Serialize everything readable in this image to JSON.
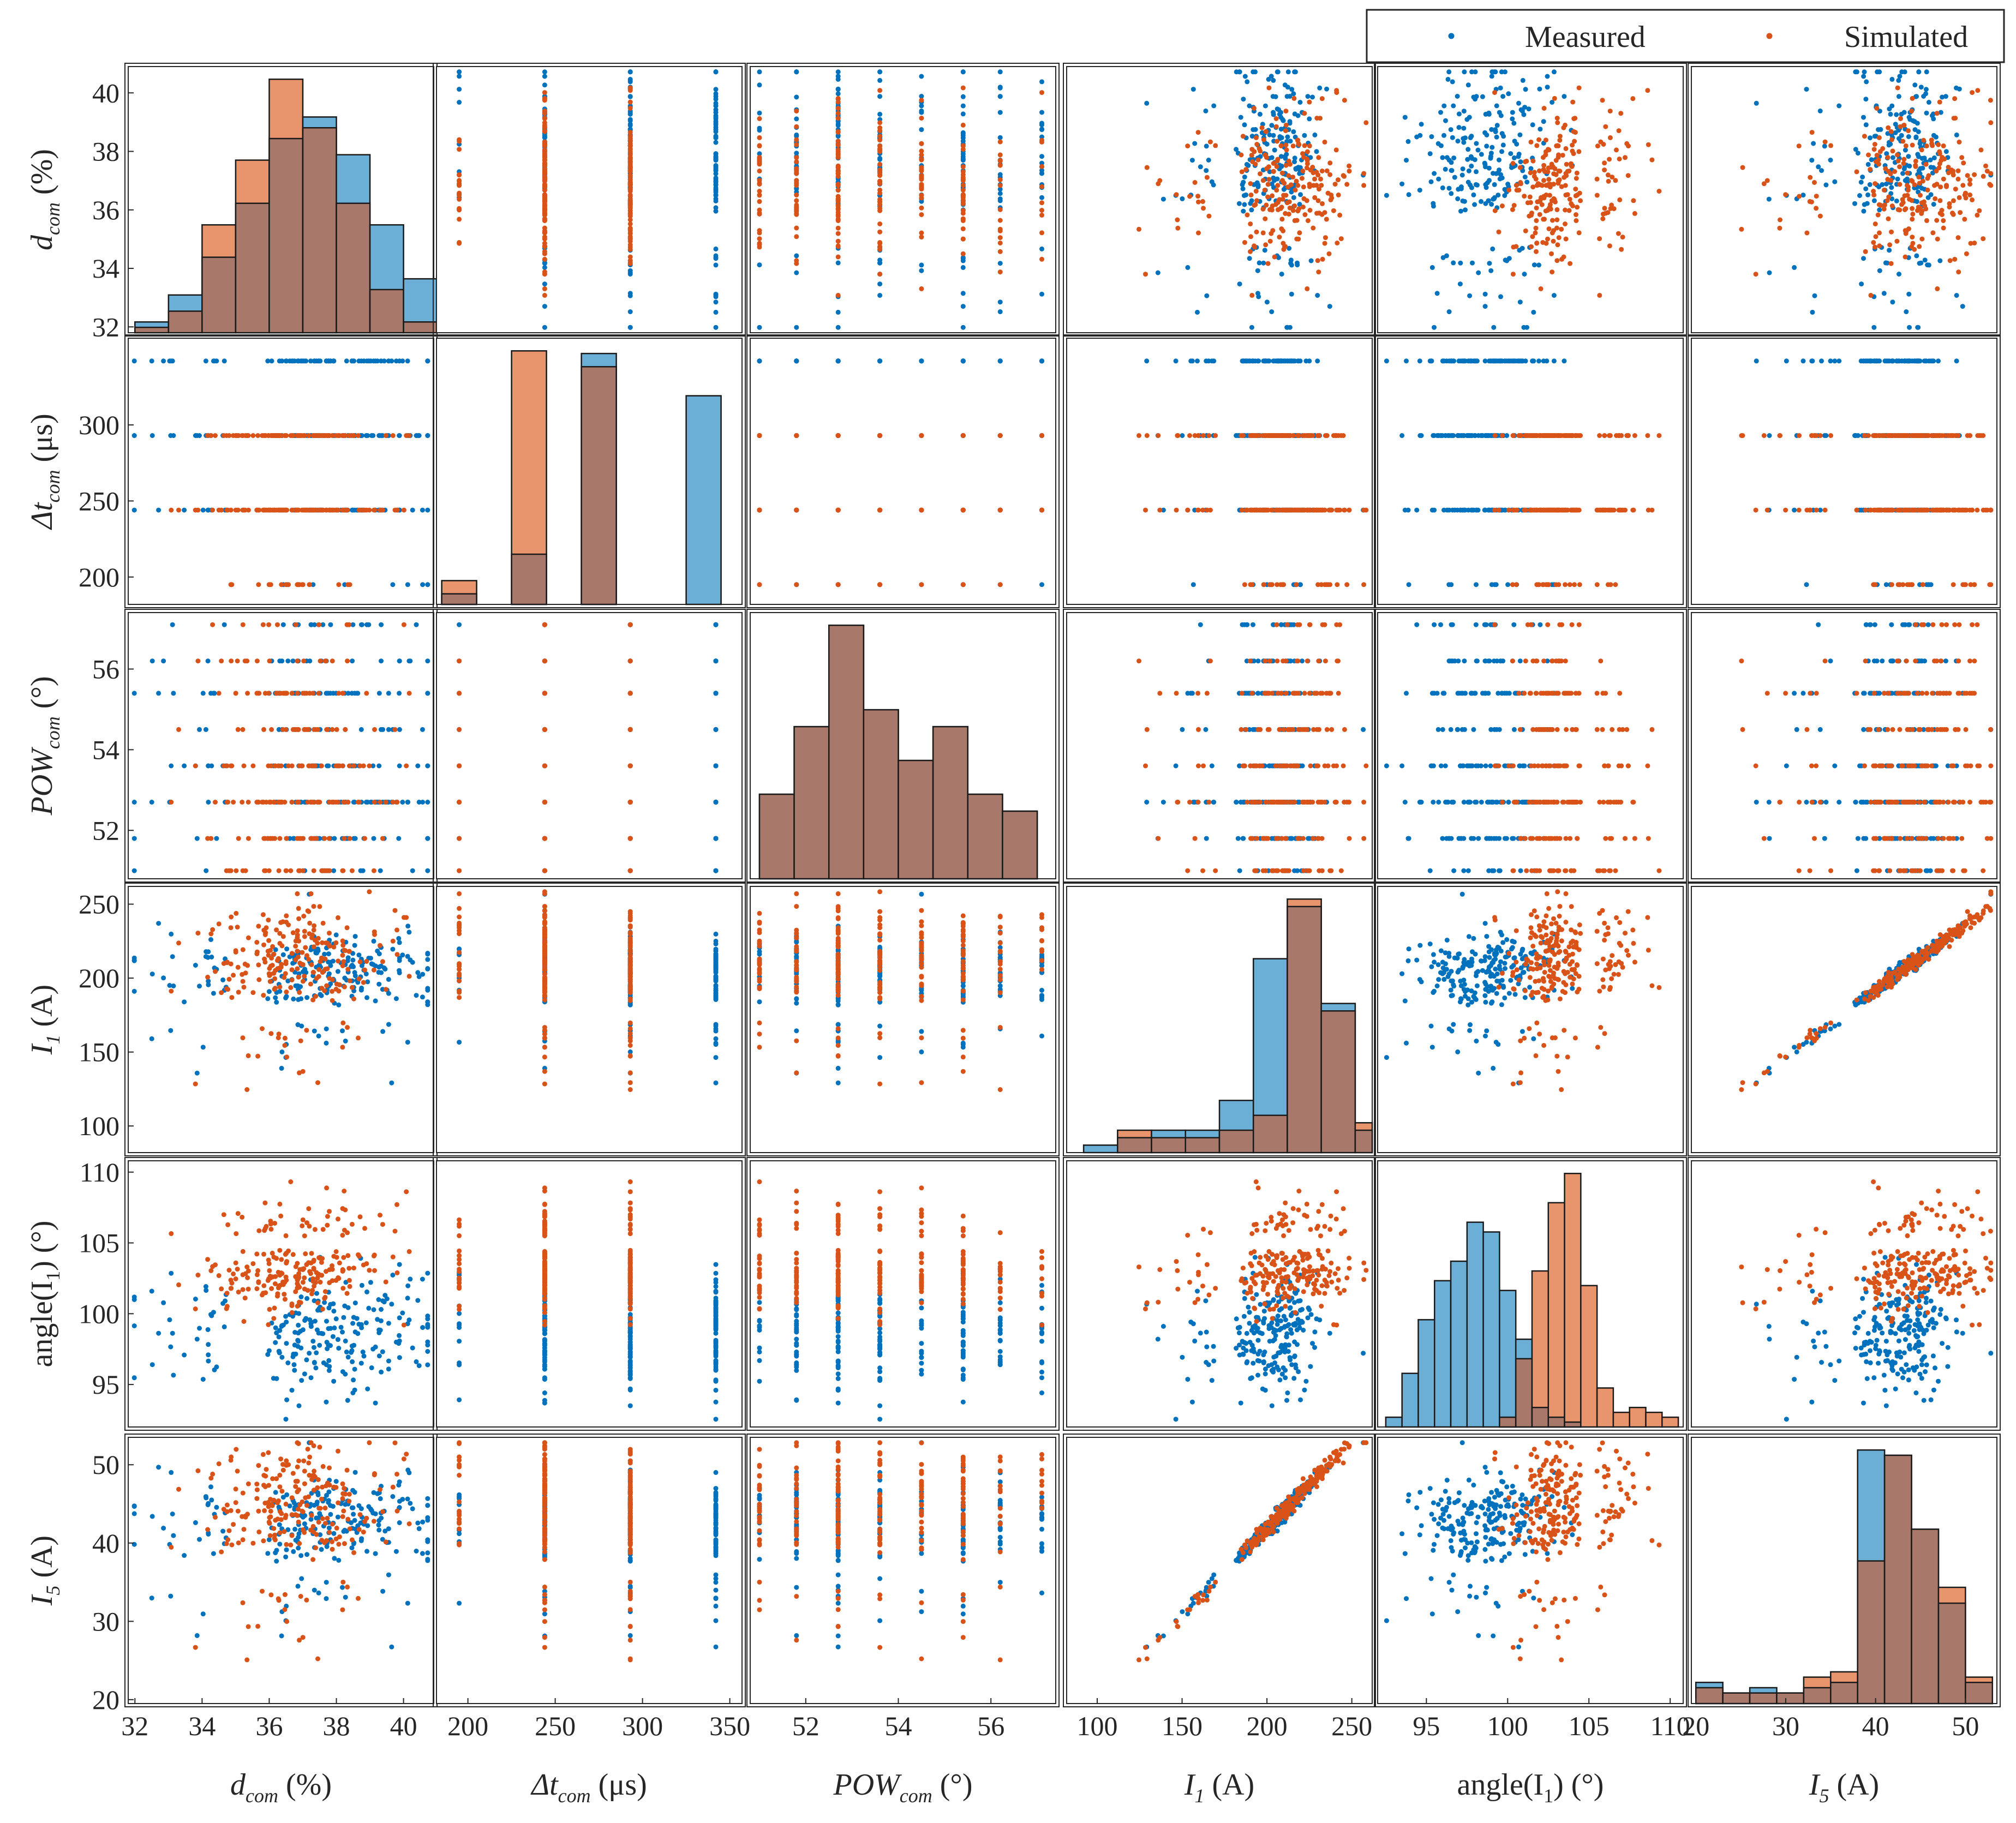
{
  "chart_data": {
    "type": "scatter-matrix",
    "colors": {
      "measured": "#0072bd",
      "simulated": "#d95319",
      "hist_measured": "#6baed6",
      "hist_simulated": "#e8946d",
      "hist_overlap": "#a8786a"
    },
    "legend": {
      "position": "top-right",
      "entries": [
        "Measured",
        "Simulated"
      ]
    },
    "variables": [
      {
        "key": "dcom",
        "base": "d",
        "sub": "com",
        "unit": " (%)",
        "italic": true,
        "range": [
          31.8,
          40.9
        ],
        "ticks": [
          32,
          34,
          36,
          38,
          40
        ],
        "tick_labels": [
          "32",
          "34",
          "36",
          "38",
          "40"
        ],
        "measured": {
          "mean": 37.8,
          "sd": 1.6,
          "skew": -1
        },
        "simulated": {
          "mean": 36.8,
          "sd": 1.4,
          "skew": 0
        }
      },
      {
        "key": "dtcom",
        "base": "Δt",
        "sub": "com",
        "unit": " (μs)",
        "italic": true,
        "range": [
          182,
          357
        ],
        "ticks": [
          200,
          250,
          300,
          350
        ],
        "tick_labels": [
          "200",
          "250",
          "300",
          "350"
        ],
        "levels": [
          195,
          244,
          293,
          342
        ],
        "measured": {
          "weights": [
            4,
            19,
            32,
            26
          ]
        },
        "simulated": {
          "weights": [
            6,
            34,
            30,
            0
          ]
        }
      },
      {
        "key": "powcom",
        "base": "POW",
        "sub": "com",
        "unit": " (°)",
        "italic": true,
        "range": [
          50.8,
          57.4
        ],
        "ticks": [
          52,
          54,
          56
        ],
        "tick_labels": [
          "52",
          "54",
          "56"
        ],
        "levels": [
          51.0,
          51.8,
          52.7,
          53.6,
          54.5,
          55.4,
          56.2,
          57.1
        ],
        "measured": {
          "weights": [
            6,
            10,
            18,
            13,
            9,
            12,
            7,
            5
          ]
        },
        "simulated": {
          "weights": [
            6,
            10,
            18,
            13,
            9,
            12,
            7,
            5
          ]
        }
      },
      {
        "key": "i1",
        "base": "I",
        "sub": "1",
        "unit": " (A)",
        "italic": true,
        "range": [
          82,
          262
        ],
        "ticks": [
          100,
          150,
          200,
          250
        ],
        "tick_labels": [
          "100",
          "150",
          "200",
          "250"
        ],
        "measured": {
          "mean": 202,
          "sd": 17,
          "skew": -1
        },
        "simulated": {
          "mean": 210,
          "sd": 21,
          "skew": -1
        }
      },
      {
        "key": "ang",
        "base": "angle(I",
        "sub": "1",
        "unit": ") (°)",
        "italic": false,
        "range": [
          92.0,
          110.8
        ],
        "ticks": [
          95,
          100,
          105,
          110
        ],
        "tick_labels": [
          "95",
          "100",
          "105",
          "110"
        ],
        "measured": {
          "mean": 98.6,
          "sd": 2.3,
          "skew": 0
        },
        "simulated": {
          "mean": 102.8,
          "sd": 1.4,
          "skew": 1
        }
      },
      {
        "key": "i5",
        "base": "I",
        "sub": "5",
        "unit": " (A)",
        "italic": true,
        "range": [
          19.5,
          53.5
        ],
        "ticks": [
          20,
          30,
          40,
          50
        ],
        "tick_labels": [
          "20",
          "30",
          "40",
          "50"
        ],
        "measured": {
          "mean": 43,
          "sd": 3.0,
          "skew": -1
        },
        "simulated": {
          "mean": 43,
          "sd": 4.0,
          "skew": -1
        }
      }
    ],
    "y_tick_overrides": {
      "dtcom": {
        "ticks": [
          200,
          250,
          300
        ],
        "tick_labels": [
          "200",
          "250",
          "300"
        ]
      },
      "powcom": {
        "ticks": [
          52,
          54,
          56
        ],
        "tick_labels": [
          "52",
          "54",
          "56"
        ]
      },
      "i5": {
        "ticks": [
          20,
          30,
          40,
          50
        ],
        "tick_labels": [
          "20",
          "30",
          "40",
          "50"
        ]
      }
    },
    "histograms": [
      {
        "var": "dcom",
        "edges": [
          32,
          33,
          34,
          35,
          36,
          37,
          38,
          39,
          40,
          41
        ],
        "measured": [
          2,
          7,
          14,
          24,
          36,
          40,
          33,
          20,
          10
        ],
        "simulated": [
          1,
          4,
          20,
          32,
          47,
          38,
          24,
          8,
          2
        ]
      },
      {
        "var": "dtcom",
        "edges": [
          185,
          205,
          225,
          245,
          265,
          285,
          305,
          325,
          345
        ],
        "measured": [
          4,
          0,
          19,
          0,
          95,
          0,
          0,
          79
        ],
        "simulated": [
          9,
          0,
          96,
          0,
          90,
          0,
          0,
          0
        ]
      },
      {
        "var": "powcom",
        "edges": [
          51,
          51.75,
          52.5,
          53.25,
          54,
          54.75,
          55.5,
          56.25,
          57
        ],
        "measured": [
          10,
          18,
          30,
          20,
          14,
          18,
          10,
          8
        ],
        "simulated": [
          10,
          18,
          30,
          20,
          14,
          18,
          10,
          8
        ]
      },
      {
        "var": "i1",
        "edges": [
          92,
          112,
          132,
          152,
          172,
          192,
          212,
          232,
          252,
          262
        ],
        "measured": [
          1,
          2,
          3,
          3,
          7,
          26,
          33,
          20,
          3
        ],
        "simulated": [
          0,
          3,
          2,
          2,
          3,
          5,
          34,
          19,
          4
        ]
      },
      {
        "var": "ang",
        "edges": [
          92.5,
          93.5,
          94.5,
          95.5,
          96.5,
          97.5,
          98.5,
          99.5,
          100.5,
          101.5,
          102.5,
          103.5,
          104.5,
          105.5,
          106.5,
          107.5,
          108.5,
          109.5,
          110.5
        ],
        "measured": [
          2,
          11,
          22,
          30,
          34,
          42,
          40,
          28,
          18,
          4,
          2,
          1,
          0,
          0,
          0,
          0,
          0,
          0
        ],
        "simulated": [
          0,
          0,
          0,
          0,
          0,
          0,
          0,
          2,
          14,
          32,
          46,
          52,
          29,
          8,
          3,
          4,
          3,
          2
        ]
      },
      {
        "var": "i5",
        "edges": [
          20,
          23,
          26,
          29,
          32,
          35,
          38,
          41,
          44,
          47,
          50,
          53
        ],
        "measured": [
          4,
          2,
          3,
          2,
          3,
          4,
          48,
          47,
          33,
          19,
          4
        ],
        "simulated": [
          3,
          2,
          2,
          2,
          5,
          6,
          27,
          47,
          33,
          22,
          5
        ]
      }
    ]
  }
}
